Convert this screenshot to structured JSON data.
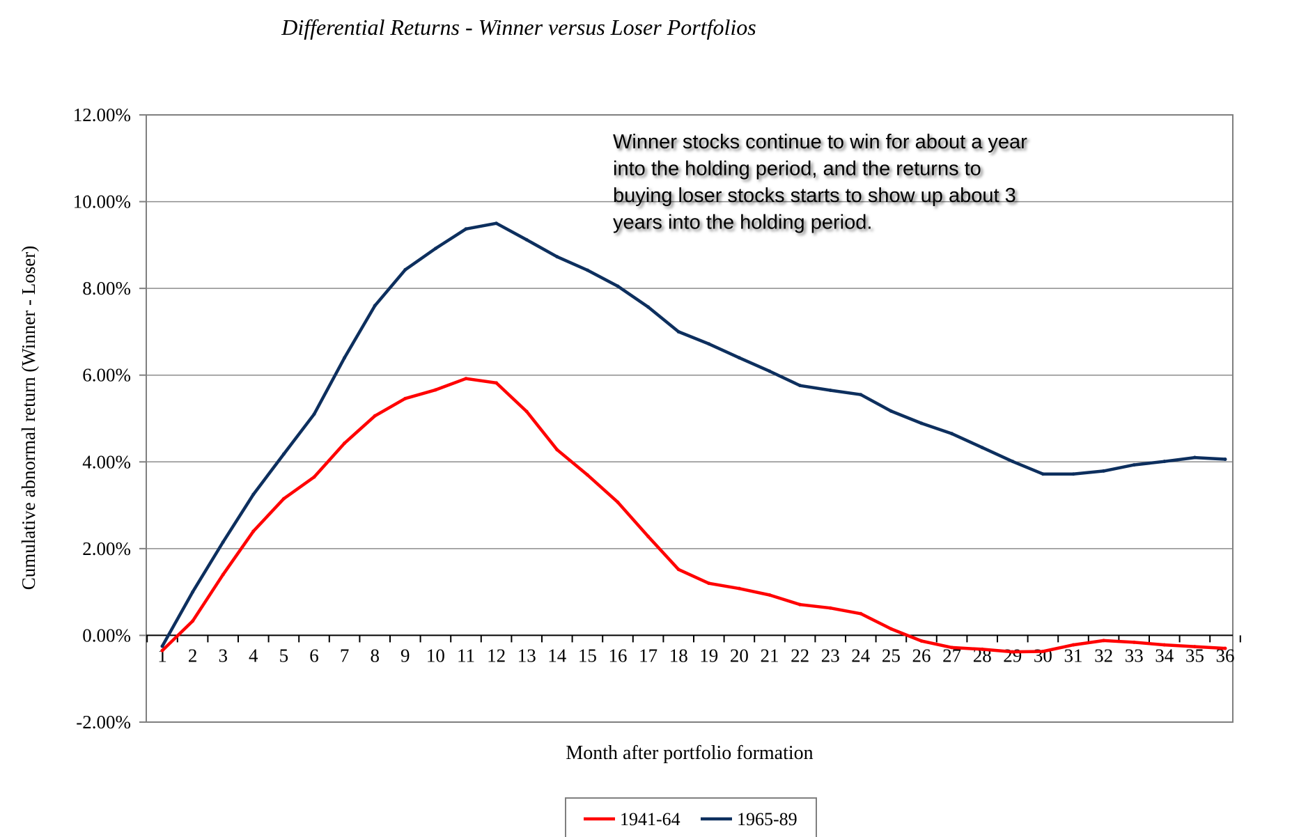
{
  "chart_data": {
    "type": "line",
    "title": "Differential Returns - Winner versus Loser Portfolios",
    "xlabel": "Month after portfolio formation",
    "ylabel": "Cumulative abnormal return (Winner - Loser)",
    "ylim": [
      -0.02,
      0.12
    ],
    "yticks": [
      "-2.00%",
      "0.00%",
      "2.00%",
      "4.00%",
      "6.00%",
      "8.00%",
      "10.00%",
      "12.00%"
    ],
    "grid": true,
    "legend_position": "bottom",
    "categories": [
      "1",
      "2",
      "3",
      "4",
      "5",
      "6",
      "7",
      "8",
      "9",
      "10",
      "11",
      "12",
      "13",
      "14",
      "15",
      "16",
      "17",
      "18",
      "19",
      "20",
      "21",
      "22",
      "23",
      "24",
      "25",
      "26",
      "27",
      "28",
      "29",
      "30",
      "31",
      "32",
      "33",
      "34",
      "35",
      "36"
    ],
    "series": [
      {
        "name": "1941-64",
        "color": "#ff0000",
        "values": [
          -0.0035,
          0.0033,
          0.014,
          0.024,
          0.0315,
          0.0365,
          0.0443,
          0.0506,
          0.0546,
          0.0566,
          0.0592,
          0.0582,
          0.0516,
          0.0428,
          0.037,
          0.0307,
          0.0228,
          0.0152,
          0.012,
          0.0108,
          0.0093,
          0.0071,
          0.0063,
          0.005,
          0.0015,
          -0.0013,
          -0.0028,
          -0.0032,
          -0.0038,
          -0.0037,
          -0.0022,
          -0.0012,
          -0.0016,
          -0.0022,
          -0.0026,
          -0.003
        ]
      },
      {
        "name": "1965-89",
        "color": "#0d2f5e",
        "values": [
          -0.0025,
          0.01,
          0.0215,
          0.0325,
          0.0418,
          0.051,
          0.064,
          0.076,
          0.0843,
          0.0892,
          0.0937,
          0.095,
          0.0912,
          0.0873,
          0.0842,
          0.0805,
          0.0757,
          0.07,
          0.0672,
          0.064,
          0.0609,
          0.0576,
          0.0565,
          0.0555,
          0.0517,
          0.0489,
          0.0465,
          0.0433,
          0.0401,
          0.0372,
          0.0372,
          0.0379,
          0.0393,
          0.0401,
          0.041,
          0.0406
        ]
      }
    ],
    "annotation": {
      "lines": [
        "Winner stocks continue to win for about a year",
        "into the holding period, and the returns to",
        "buying loser stocks starts to show up about 3",
        "years into the holding period."
      ]
    }
  }
}
